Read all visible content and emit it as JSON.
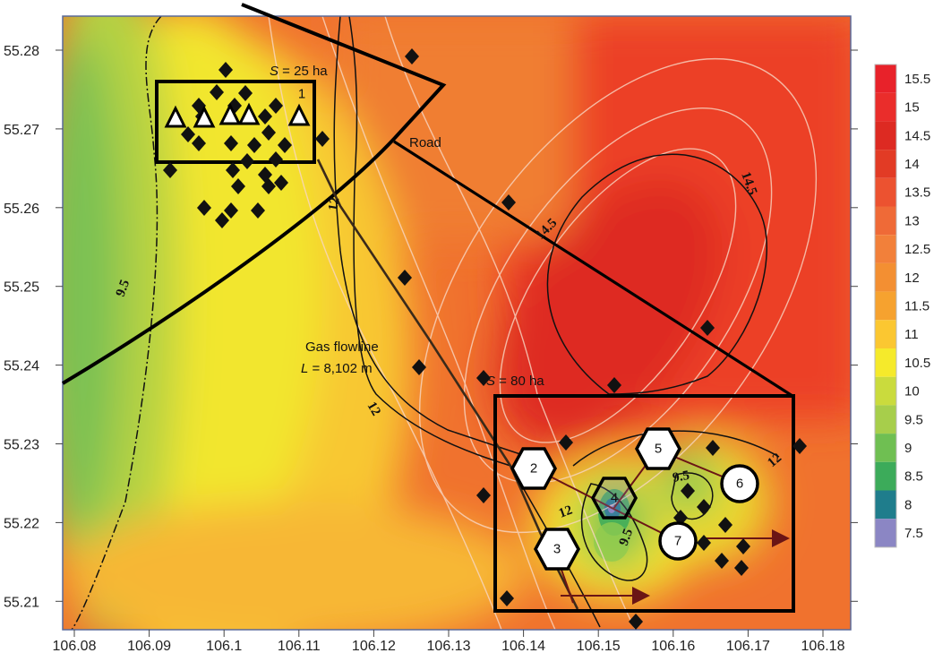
{
  "x_ticks": [
    "106.08",
    "106.09",
    "106.1",
    "106.11",
    "106.12",
    "106.13",
    "106.14",
    "106.15",
    "106.16",
    "106.17",
    "106.18"
  ],
  "y_ticks": [
    "55.28",
    "55.27",
    "55.26",
    "55.25",
    "55.24",
    "55.23",
    "55.22",
    "55.21"
  ],
  "annotations": {
    "area_small_var": "S",
    "area_small_rest": " = 25 ha",
    "area_large_var": "S",
    "area_large_rest": " = 80 ha",
    "road": "Road",
    "flowline_title": "Gas flowline",
    "flowline_var": "L",
    "flowline_rest": " = 8,102 m"
  },
  "contour_labels": [
    "9.5",
    "12",
    "12",
    "14.5",
    "14.5",
    "12",
    "12",
    "9.5",
    "9.5",
    "14.5",
    "12"
  ],
  "site_numbers": [
    "1",
    "2",
    "3",
    "4",
    "5",
    "6",
    "7"
  ],
  "legend": {
    "levels": [
      "15.5",
      "15",
      "14.5",
      "14",
      "13.5",
      "13",
      "12.5",
      "12",
      "11.5",
      "11",
      "10.5",
      "10",
      "9.5",
      "9",
      "8.5",
      "8",
      "7.5"
    ],
    "colors": [
      "#e8222a",
      "#ea2d2b",
      "#dd2a22",
      "#e23b25",
      "#ec5230",
      "#ef6a37",
      "#f2803a",
      "#f38f32",
      "#f6a22f",
      "#fbc731",
      "#f5ea2b",
      "#cadb3d",
      "#a7ce4b",
      "#6fbf52",
      "#3cab5a",
      "#1f7d8c",
      "#8b86c4"
    ]
  },
  "colors": {
    "boundary": "#000000",
    "flowline": "#3a2a1a",
    "arrow": "#6b1515",
    "well_marker": "#111111"
  }
}
